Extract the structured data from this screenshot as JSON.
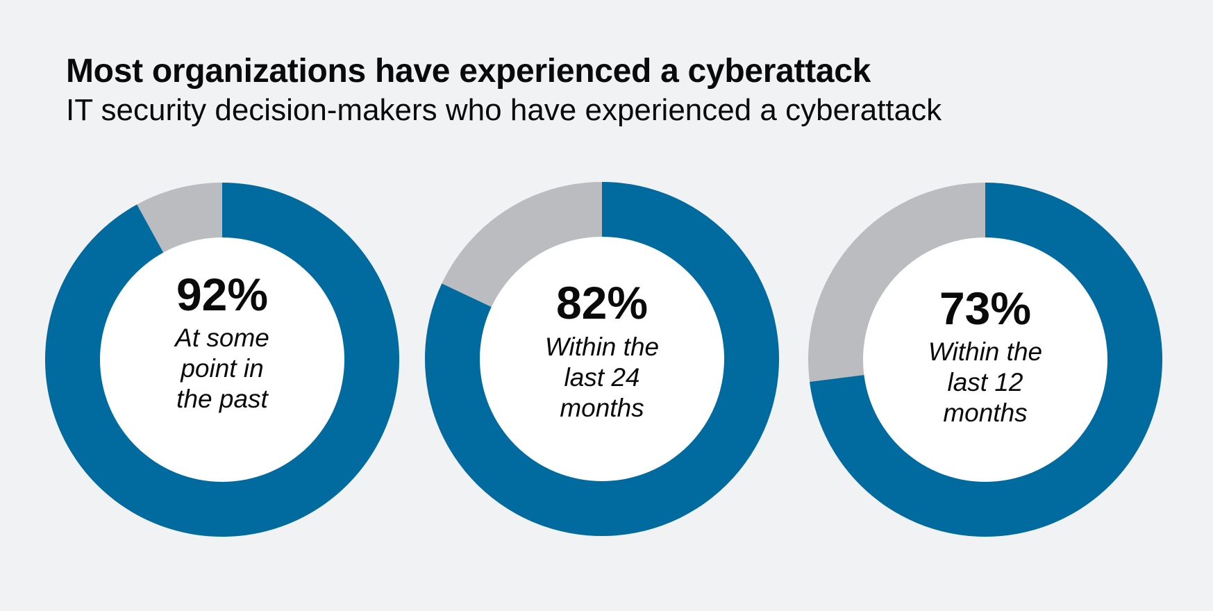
{
  "title": "Most organizations have experienced a cyberattack",
  "subtitle": "IT security decision-makers who have experienced a cyberattack",
  "colors": {
    "value": "#016ba0",
    "remainder": "#bbbcc0",
    "center": "#ffffff"
  },
  "chart_data": [
    {
      "type": "pie",
      "style": "donut",
      "categories": [
        "At some point in the past",
        "Other"
      ],
      "values": [
        92,
        8
      ],
      "value_label": "92%",
      "label_lines": [
        "At some",
        "point in",
        "the past"
      ]
    },
    {
      "type": "pie",
      "style": "donut",
      "categories": [
        "Within the last 24 months",
        "Other"
      ],
      "values": [
        82,
        18
      ],
      "value_label": "82%",
      "label_lines": [
        "Within the",
        "last 24",
        "months"
      ]
    },
    {
      "type": "pie",
      "style": "donut",
      "categories": [
        "Within the last 12 months",
        "Other"
      ],
      "values": [
        73,
        27
      ],
      "value_label": "73%",
      "label_lines": [
        "Within the",
        "last 12",
        "months"
      ]
    }
  ]
}
